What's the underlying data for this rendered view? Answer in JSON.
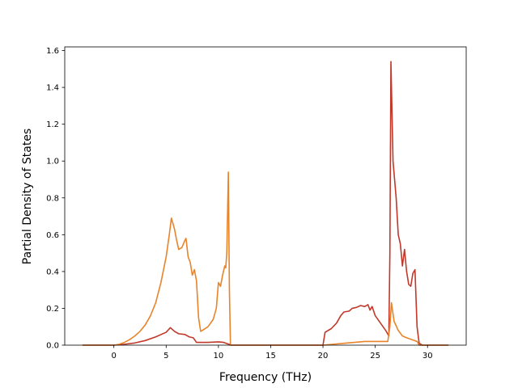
{
  "chart_data": {
    "type": "line",
    "title": "",
    "xlabel": "Frequency (THz)",
    "ylabel": "Partial Density of States",
    "xlim": [
      -4.7,
      33.7
    ],
    "ylim": [
      0,
      1.62
    ],
    "x_ticks": [
      0,
      5,
      10,
      15,
      20,
      25,
      30
    ],
    "y_ticks": [
      0.0,
      0.2,
      0.4,
      0.6,
      0.8,
      1.0,
      1.2,
      1.4,
      1.6
    ],
    "x_tick_labels": [
      "0",
      "5",
      "10",
      "15",
      "20",
      "25",
      "30"
    ],
    "y_tick_labels": [
      "0.0",
      "0.2",
      "0.4",
      "0.6",
      "0.8",
      "1.0",
      "1.2",
      "1.4",
      "1.6"
    ],
    "grid": false,
    "legend": "none",
    "series": [
      {
        "color": "#c0392b",
        "points": [
          [
            -3,
            0
          ],
          [
            0,
            0
          ],
          [
            1,
            0.005
          ],
          [
            2,
            0.012
          ],
          [
            3,
            0.025
          ],
          [
            4,
            0.045
          ],
          [
            5,
            0.07
          ],
          [
            5.4,
            0.095
          ],
          [
            5.8,
            0.075
          ],
          [
            6.2,
            0.062
          ],
          [
            6.8,
            0.058
          ],
          [
            7.2,
            0.045
          ],
          [
            7.6,
            0.04
          ],
          [
            7.9,
            0.015
          ],
          [
            9,
            0.015
          ],
          [
            10,
            0.018
          ],
          [
            10.5,
            0.015
          ],
          [
            11,
            0.005
          ],
          [
            11.2,
            0
          ],
          [
            20,
            0
          ],
          [
            20.2,
            0.07
          ],
          [
            20.8,
            0.09
          ],
          [
            21.3,
            0.12
          ],
          [
            21.7,
            0.16
          ],
          [
            22,
            0.18
          ],
          [
            22.5,
            0.185
          ],
          [
            22.8,
            0.2
          ],
          [
            23.2,
            0.205
          ],
          [
            23.6,
            0.215
          ],
          [
            24,
            0.21
          ],
          [
            24.3,
            0.22
          ],
          [
            24.5,
            0.19
          ],
          [
            24.7,
            0.21
          ],
          [
            25,
            0.16
          ],
          [
            25.5,
            0.12
          ],
          [
            26,
            0.08
          ],
          [
            26.3,
            0.05
          ],
          [
            26.4,
            0.5
          ],
          [
            26.5,
            1.54
          ],
          [
            26.7,
            1.0
          ],
          [
            27,
            0.8
          ],
          [
            27.2,
            0.6
          ],
          [
            27.4,
            0.55
          ],
          [
            27.6,
            0.43
          ],
          [
            27.8,
            0.52
          ],
          [
            28,
            0.4
          ],
          [
            28.2,
            0.33
          ],
          [
            28.4,
            0.32
          ],
          [
            28.6,
            0.39
          ],
          [
            28.8,
            0.41
          ],
          [
            29,
            0.1
          ],
          [
            29.2,
            0.01
          ],
          [
            29.5,
            0
          ],
          [
            32,
            0
          ]
        ]
      },
      {
        "color": "#e8842a",
        "points": [
          [
            -3,
            0
          ],
          [
            0,
            0
          ],
          [
            0.5,
            0.005
          ],
          [
            1,
            0.015
          ],
          [
            1.5,
            0.03
          ],
          [
            2,
            0.05
          ],
          [
            2.5,
            0.075
          ],
          [
            3,
            0.11
          ],
          [
            3.5,
            0.16
          ],
          [
            4,
            0.23
          ],
          [
            4.5,
            0.34
          ],
          [
            5,
            0.48
          ],
          [
            5.3,
            0.6
          ],
          [
            5.5,
            0.69
          ],
          [
            5.8,
            0.63
          ],
          [
            6,
            0.57
          ],
          [
            6.2,
            0.52
          ],
          [
            6.5,
            0.53
          ],
          [
            6.8,
            0.57
          ],
          [
            6.9,
            0.58
          ],
          [
            7.1,
            0.48
          ],
          [
            7.3,
            0.45
          ],
          [
            7.5,
            0.38
          ],
          [
            7.7,
            0.41
          ],
          [
            7.9,
            0.35
          ],
          [
            8.1,
            0.15
          ],
          [
            8.3,
            0.075
          ],
          [
            8.6,
            0.085
          ],
          [
            9,
            0.1
          ],
          [
            9.5,
            0.14
          ],
          [
            9.8,
            0.2
          ],
          [
            10,
            0.34
          ],
          [
            10.2,
            0.32
          ],
          [
            10.4,
            0.38
          ],
          [
            10.6,
            0.43
          ],
          [
            10.7,
            0.42
          ],
          [
            10.8,
            0.5
          ],
          [
            10.95,
            0.94
          ],
          [
            11.05,
            0.3
          ],
          [
            11.15,
            0
          ],
          [
            20,
            0
          ],
          [
            22,
            0.01
          ],
          [
            24,
            0.02
          ],
          [
            25.5,
            0.02
          ],
          [
            26.2,
            0.02
          ],
          [
            26.4,
            0.1
          ],
          [
            26.55,
            0.23
          ],
          [
            26.8,
            0.13
          ],
          [
            27.2,
            0.08
          ],
          [
            27.6,
            0.05
          ],
          [
            28,
            0.04
          ],
          [
            28.5,
            0.03
          ],
          [
            29,
            0.02
          ],
          [
            29.2,
            0
          ],
          [
            32,
            0
          ]
        ]
      }
    ]
  }
}
